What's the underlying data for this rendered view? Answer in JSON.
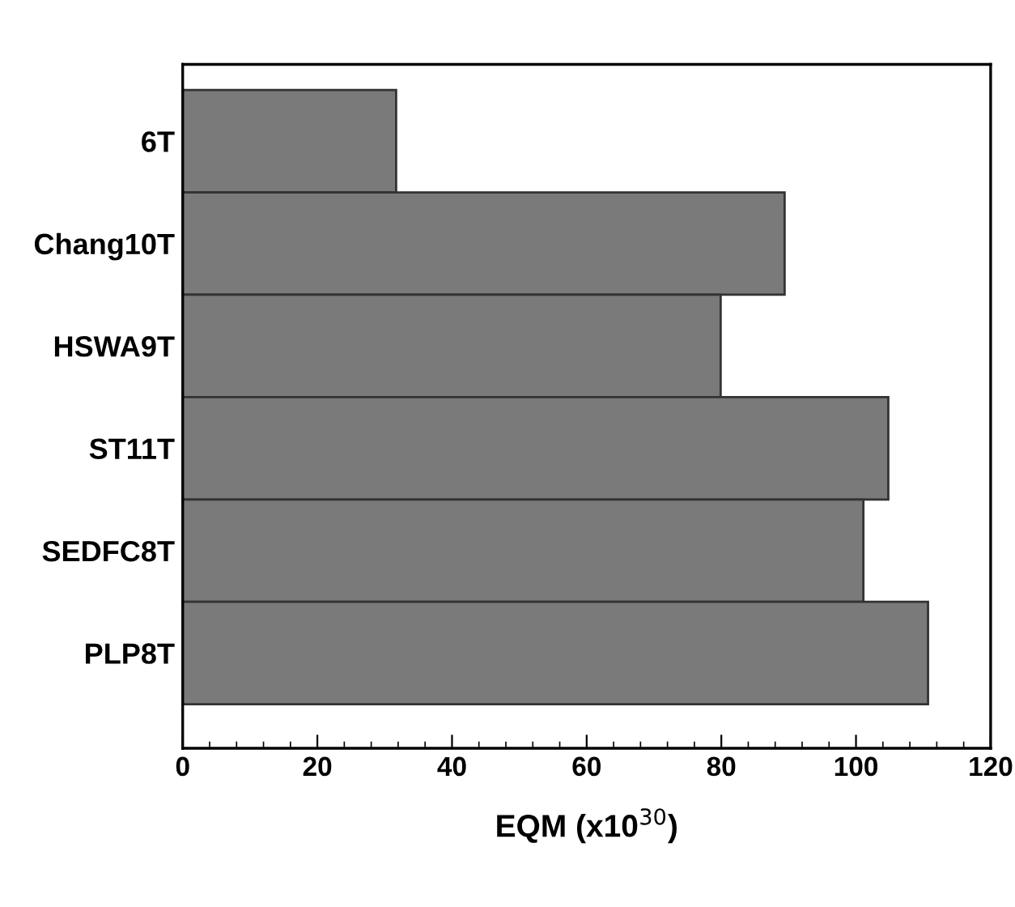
{
  "chart_data": {
    "type": "bar",
    "orientation": "horizontal",
    "xlabel": "EQM (x10$^{30}$)",
    "categories": [
      "6T",
      "Chang10T",
      "HSWA9T",
      "ST11T",
      "SEDFC8T",
      "PLP8T"
    ],
    "values": [
      31.7,
      89.4,
      79.9,
      104.8,
      101.1,
      110.7
    ],
    "color": "#7a7a7a",
    "xlim": [
      0,
      120
    ],
    "xticks": [
      0,
      20,
      40,
      60,
      80,
      100,
      120
    ],
    "grid": false
  }
}
